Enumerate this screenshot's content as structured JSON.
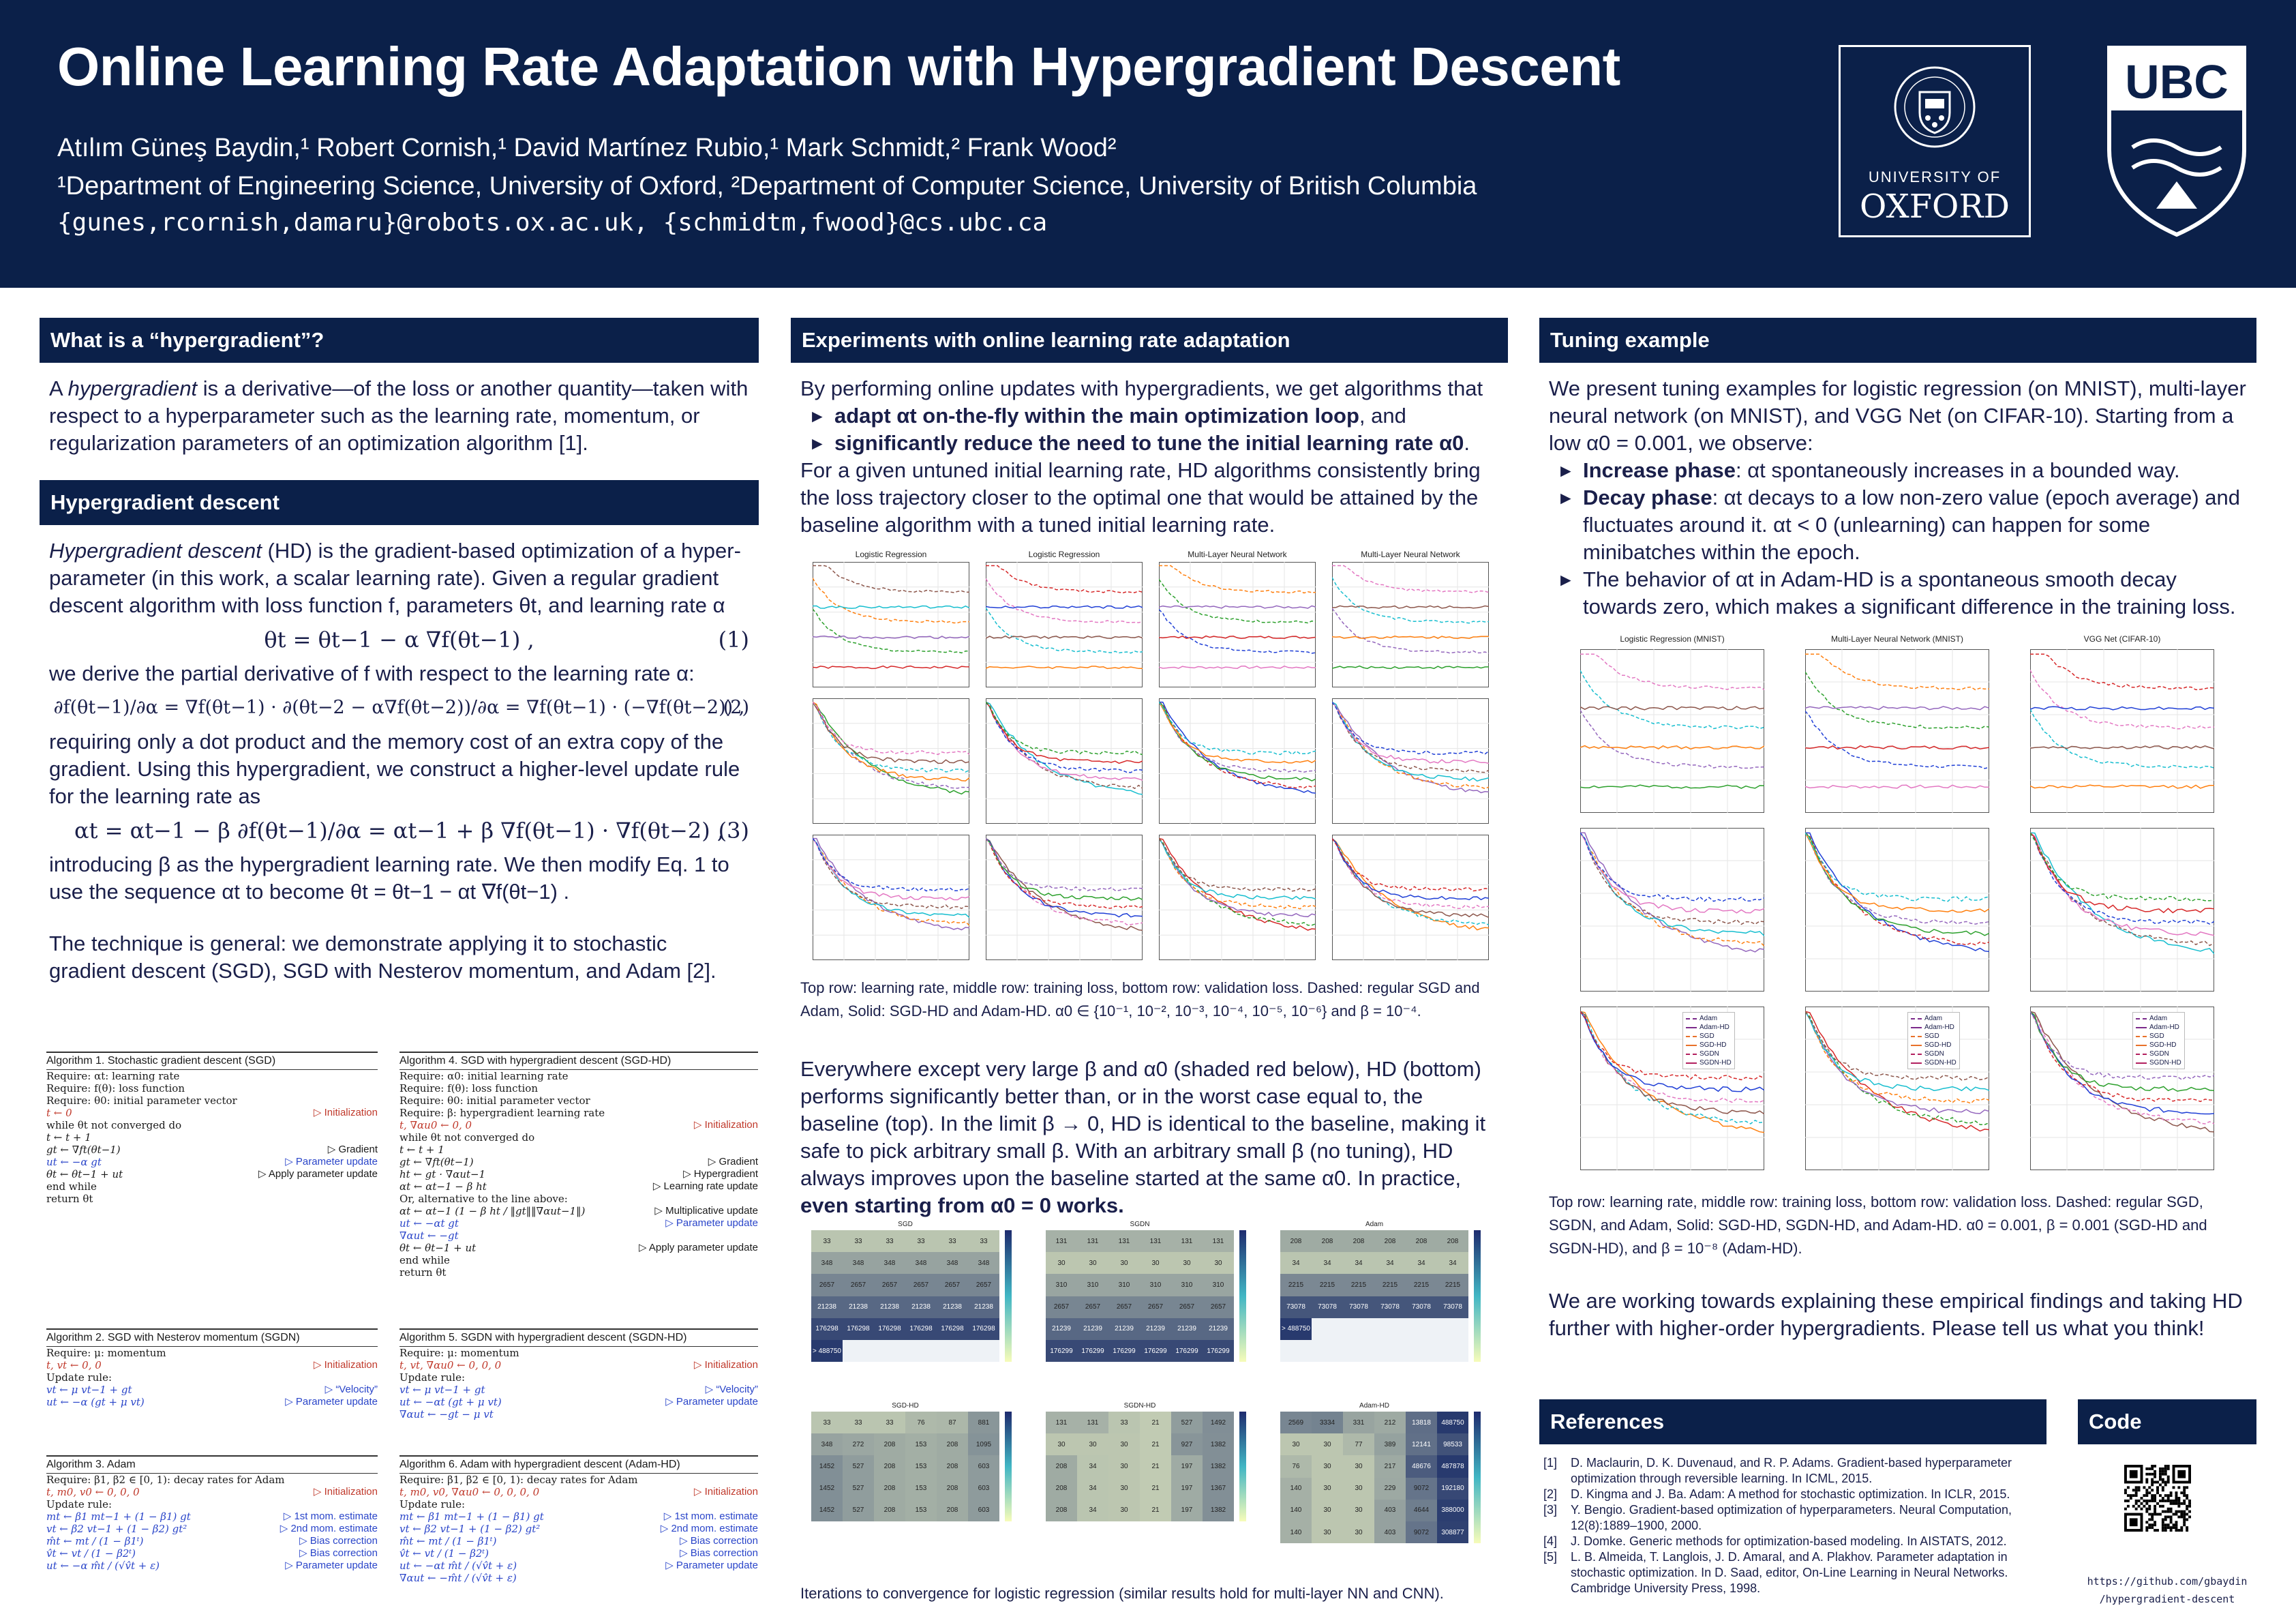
{
  "header": {
    "title": "Online Learning Rate Adaptation with Hypergradient Descent",
    "authors": "Atılım Güneş Baydin,¹ Robert Cornish,¹ David Martínez Rubio,¹ Mark Schmidt,² Frank Wood²",
    "affiliations": "¹Department of Engineering Science, University of Oxford, ²Department of Computer Science, University of British Columbia",
    "emails": "{gunes,rcornish,damaru}@robots.ox.ac.uk, {schmidtm,fwood}@cs.ubc.ca",
    "oxford_logo": {
      "line1": "UNIVERSITY OF",
      "line2": "OXFORD",
      "icon": "oxford-crest-icon"
    },
    "ubc_logo": {
      "text": "UBC",
      "icon": "ubc-shield-icon"
    }
  },
  "col1": {
    "sec1_title": "What is a “hypergradient”?",
    "sec1_p_a": "A ",
    "sec1_p_i": "hypergradient",
    "sec1_p_b": " is a derivative—of the loss or another quantity—taken with respect to a hyperparameter such as the learning rate, momentum, or regularization parameters of an optimization algorithm [1].",
    "sec2_title": "Hypergradient descent",
    "sec2_p1_i": "Hypergradient descent",
    "sec2_p1_b": " (HD) is the gradient-based optimization of a hyper-parameter (in this work, a scalar learning rate). Given a regular gradient descent algorithm with loss function f, parameters θt, and learning rate α",
    "eq1": "θt = θt−1 − α ∇f(θt−1) ,",
    "eq1_num": "(1)",
    "p2": "we derive the partial derivative of f with respect to the learning rate α:",
    "eq2": "∂f(θt−1)/∂α = ∇f(θt−1) · ∂(θt−2 − α∇f(θt−2))/∂α = ∇f(θt−1) · (−∇f(θt−2)) ,",
    "eq2_num": "(2)",
    "p3": "requiring only a dot product and the memory cost of an extra copy of the gradient. Using this hypergradient, we construct a higher-level update rule for the learning rate as",
    "eq3": "αt = αt−1 − β ∂f(θt−1)/∂α = αt−1 + β ∇f(θt−1) · ∇f(θt−2) ,",
    "eq3_num": "(3)",
    "p4": "introducing β as the hypergradient learning rate. We then modify Eq. 1 to use the sequence αt to become θt = θt−1 − αt ∇f(θt−1) .",
    "p5": "The technique is general: we demonstrate applying it to stochastic gradient descent (SGD), SGD with Nesterov momentum, and Adam [2]."
  },
  "algorithms": [
    {
      "title": "Algorithm 1. Stochastic gradient descent (SGD)",
      "lines": [
        {
          "t": "Require: αt: learning rate",
          "c": ""
        },
        {
          "t": "Require: f(θ): loss function",
          "c": ""
        },
        {
          "t": "Require: θ0: initial parameter vector",
          "c": ""
        },
        {
          "t": "t ← 0",
          "c": "▷ Initialization",
          "k": "red"
        },
        {
          "t": "while θt not converged do",
          "c": ""
        },
        {
          "t": "   t ← t + 1",
          "c": ""
        },
        {
          "t": "   gt ← ∇ft(θt−1)",
          "c": "▷ Gradient"
        },
        {
          "t": "   ut ← −α gt",
          "c": "▷ Parameter update",
          "k": "blue"
        },
        {
          "t": "   θt ← θt−1 + ut",
          "c": "▷ Apply parameter update"
        },
        {
          "t": "end while",
          "c": ""
        },
        {
          "t": "return θt",
          "c": ""
        }
      ]
    },
    {
      "title": "Algorithm 4. SGD with hypergradient descent (SGD-HD)",
      "lines": [
        {
          "t": "Require: α0: initial learning rate",
          "c": ""
        },
        {
          "t": "Require: f(θ): loss function",
          "c": ""
        },
        {
          "t": "Require: θ0: initial parameter vector",
          "c": ""
        },
        {
          "t": "Require: β: hypergradient learning rate",
          "c": ""
        },
        {
          "t": "t, ∇αu0 ← 0, 0",
          "c": "▷ Initialization",
          "k": "red"
        },
        {
          "t": "while θt not converged do",
          "c": ""
        },
        {
          "t": "   t ← t + 1",
          "c": ""
        },
        {
          "t": "   gt ← ∇ft(θt−1)",
          "c": "▷ Gradient"
        },
        {
          "t": "   ht ← gt · ∇αut−1",
          "c": "▷ Hypergradient"
        },
        {
          "t": "   αt ← αt−1 − β ht",
          "c": "▷ Learning rate update"
        },
        {
          "t": "   Or, alternative to the line above:",
          "c": ""
        },
        {
          "t": "   αt ← αt−1 (1 − β ht / ‖gt‖‖∇αut−1‖)",
          "c": "▷ Multiplicative update"
        },
        {
          "t": "   ut ← −αt gt",
          "c": "▷ Parameter update",
          "k": "blue"
        },
        {
          "t": "   ∇αut ← −gt",
          "c": "",
          "k": "blue"
        },
        {
          "t": "   θt ← θt−1 + ut",
          "c": "▷ Apply parameter update"
        },
        {
          "t": "end while",
          "c": ""
        },
        {
          "t": "return θt",
          "c": ""
        }
      ]
    },
    {
      "title": "Algorithm 2. SGD with Nesterov momentum (SGDN)",
      "lines": [
        {
          "t": "Require: μ: momentum",
          "c": ""
        },
        {
          "t": "t, vt ← 0, 0",
          "c": "▷ Initialization",
          "k": "red"
        },
        {
          "t": "Update rule:",
          "c": ""
        },
        {
          "t": "vt ← μ vt−1 + gt",
          "c": "▷ “Velocity”",
          "k": "blue"
        },
        {
          "t": "ut ← −α (gt + μ vt)",
          "c": "▷ Parameter update",
          "k": "blue"
        }
      ]
    },
    {
      "title": "Algorithm 5. SGDN with hypergradient descent (SGDN-HD)",
      "lines": [
        {
          "t": "Require: μ: momentum",
          "c": ""
        },
        {
          "t": "t, vt, ∇αu0 ← 0, 0, 0",
          "c": "▷ Initialization",
          "k": "red"
        },
        {
          "t": "Update rule:",
          "c": ""
        },
        {
          "t": "vt ← μ vt−1 + gt",
          "c": "▷ “Velocity”",
          "k": "blue"
        },
        {
          "t": "ut ← −αt (gt + μ vt)",
          "c": "▷ Parameter update",
          "k": "blue"
        },
        {
          "t": "∇αut ← −gt − μ vt",
          "c": "",
          "k": "blue"
        }
      ]
    },
    {
      "title": "Algorithm 3. Adam",
      "lines": [
        {
          "t": "Require: β1, β2 ∈ [0, 1): decay rates for Adam",
          "c": ""
        },
        {
          "t": "t, m0, v0 ← 0, 0, 0",
          "c": "▷ Initialization",
          "k": "red"
        },
        {
          "t": "Update rule:",
          "c": ""
        },
        {
          "t": "mt ← β1 mt−1 + (1 − β1) gt",
          "c": "▷ 1st mom. estimate",
          "k": "blue"
        },
        {
          "t": "vt ← β2 vt−1 + (1 − β2) gt²",
          "c": "▷ 2nd mom. estimate",
          "k": "blue"
        },
        {
          "t": "m̂t ← mt / (1 − β1ᵗ)",
          "c": "▷ Bias correction",
          "k": "blue"
        },
        {
          "t": "v̂t ← vt / (1 − β2ᵗ)",
          "c": "▷ Bias correction",
          "k": "blue"
        },
        {
          "t": "ut ← −α m̂t / (√v̂t + ε)",
          "c": "▷ Parameter update",
          "k": "blue"
        }
      ]
    },
    {
      "title": "Algorithm 6. Adam with hypergradient descent (Adam-HD)",
      "lines": [
        {
          "t": "Require: β1, β2 ∈ [0, 1): decay rates for Adam",
          "c": ""
        },
        {
          "t": "t, m0, v0, ∇αu0 ← 0, 0, 0, 0",
          "c": "▷ Initialization",
          "k": "red"
        },
        {
          "t": "Update rule:",
          "c": ""
        },
        {
          "t": "mt ← β1 mt−1 + (1 − β1) gt",
          "c": "▷ 1st mom. estimate",
          "k": "blue"
        },
        {
          "t": "vt ← β2 vt−1 + (1 − β2) gt²",
          "c": "▷ 2nd mom. estimate",
          "k": "blue"
        },
        {
          "t": "m̂t ← mt / (1 − β1ᵗ)",
          "c": "▷ Bias correction",
          "k": "blue"
        },
        {
          "t": "v̂t ← vt / (1 − β2ᵗ)",
          "c": "▷ Bias correction",
          "k": "blue"
        },
        {
          "t": "ut ← −αt m̂t / (√v̂t + ε)",
          "c": "▷ Parameter update",
          "k": "blue"
        },
        {
          "t": "∇αut ← −m̂t / (√v̂t + ε)",
          "c": "",
          "k": "blue"
        }
      ]
    }
  ],
  "col2": {
    "title": "Experiments with online learning rate adaptation",
    "intro": "By performing online updates with hypergradients, we get algorithms that",
    "b1_a": "adapt αt on-the-fly within the main optimization loop",
    "b1_b": ", and",
    "b2_a": "significantly reduce the need to tune the initial learning rate α0",
    "b2_b": ".",
    "p2": "For a given untuned initial learning rate, HD algorithms consistently bring the loss trajectory closer to the optimal one that would be attained by the baseline algorithm with a tuned initial learning rate.",
    "fig_titles": [
      "Logistic Regression",
      "Logistic Regression",
      "Multi-Layer Neural Network",
      "Multi-Layer Neural Network"
    ],
    "caption1": "Top row: learning rate, middle row: training loss, bottom row: validation loss. Dashed: regular SGD and Adam, Solid: SGD-HD and Adam-HD. α0 ∈ {10⁻¹, 10⁻², 10⁻³, 10⁻⁴, 10⁻⁵, 10⁻⁶} and β = 10⁻⁴.",
    "p3_a": "Everywhere except very large β and α0 (shaded red below), HD (bottom) performs significantly better than, or in the worst case equal to, the baseline (top). In the limit β → 0, HD is identical to the baseline, making it safe to pick arbitrary small β. With an arbitrary small β (no tuning), HD always improves upon the baseline started at the same α0. In practice, ",
    "p3_b": "even starting from α0 = 0 works.",
    "heat_titles": [
      "SGD",
      "SGDN",
      "Adam",
      "SGD-HD",
      "SGDN-HD",
      "Adam-HD"
    ],
    "caption2": "Iterations to convergence for logistic regression (similar results hold for multi-layer NN and CNN)."
  },
  "heatmaps": [
    {
      "rows": [
        [
          "33",
          "33",
          "33",
          "33",
          "33",
          "33"
        ],
        [
          "348",
          "348",
          "348",
          "348",
          "348",
          "348"
        ],
        [
          "2657",
          "2657",
          "2657",
          "2657",
          "2657",
          "2657"
        ],
        [
          "21238",
          "21238",
          "21238",
          "21238",
          "21238",
          "21238"
        ],
        [
          "176298",
          "176298",
          "176298",
          "176298",
          "176298",
          "176298"
        ],
        [
          "> 488750",
          "",
          "",
          "",
          "",
          ""
        ]
      ]
    },
    {
      "rows": [
        [
          "131",
          "131",
          "131",
          "131",
          "131",
          "131"
        ],
        [
          "30",
          "30",
          "30",
          "30",
          "30",
          "30"
        ],
        [
          "310",
          "310",
          "310",
          "310",
          "310",
          "310"
        ],
        [
          "2657",
          "2657",
          "2657",
          "2657",
          "2657",
          "2657"
        ],
        [
          "21239",
          "21239",
          "21239",
          "21239",
          "21239",
          "21239"
        ],
        [
          "176299",
          "176299",
          "176299",
          "176299",
          "176299",
          "176299"
        ]
      ]
    },
    {
      "rows": [
        [
          "208",
          "208",
          "208",
          "208",
          "208",
          "208"
        ],
        [
          "34",
          "34",
          "34",
          "34",
          "34",
          "34"
        ],
        [
          "2215",
          "2215",
          "2215",
          "2215",
          "2215",
          "2215"
        ],
        [
          "73078",
          "73078",
          "73078",
          "73078",
          "73078",
          "73078"
        ],
        [
          "> 488750",
          "",
          "",
          "",
          "",
          ""
        ],
        [
          "",
          "",
          "",
          "",
          "",
          ""
        ]
      ]
    },
    {
      "rows": [
        [
          "33",
          "33",
          "33",
          "76",
          "87",
          "881"
        ],
        [
          "348",
          "272",
          "208",
          "153",
          "208",
          "1095"
        ],
        [
          "1452",
          "527",
          "208",
          "153",
          "208",
          "603"
        ],
        [
          "1452",
          "527",
          "208",
          "153",
          "208",
          "603"
        ],
        [
          "1452",
          "527",
          "208",
          "153",
          "208",
          "603"
        ]
      ]
    },
    {
      "rows": [
        [
          "131",
          "131",
          "33",
          "21",
          "527",
          "1492"
        ],
        [
          "30",
          "30",
          "30",
          "21",
          "927",
          "1382"
        ],
        [
          "208",
          "34",
          "30",
          "21",
          "197",
          "1382"
        ],
        [
          "208",
          "34",
          "30",
          "21",
          "197",
          "1367"
        ],
        [
          "208",
          "34",
          "30",
          "21",
          "197",
          "1382"
        ]
      ]
    },
    {
      "rows": [
        [
          "2569",
          "3334",
          "331",
          "212",
          "13818",
          "488750"
        ],
        [
          "30",
          "30",
          "77",
          "389",
          "12141",
          "98533"
        ],
        [
          "76",
          "30",
          "30",
          "217",
          "48676",
          "487878"
        ],
        [
          "140",
          "30",
          "30",
          "229",
          "9072",
          "192180"
        ],
        [
          "140",
          "30",
          "30",
          "403",
          "4644",
          "388000"
        ],
        [
          "140",
          "30",
          "30",
          "403",
          "9072",
          "308877"
        ]
      ]
    }
  ],
  "col3": {
    "title": "Tuning example",
    "intro": "We present tuning examples for logistic regression (on MNIST), multi-layer neural network (on MNIST), and VGG Net (on CIFAR-10). Starting from a low α0 = 0.001, we observe:",
    "b1_a": "Increase phase",
    "b1_b": ": αt spontaneously increases in a bounded way.",
    "b2_a": "Decay phase",
    "b2_b": ": αt decays to a low non-zero value (epoch average) and fluctuates around it. αt < 0 (unlearning) can happen for some minibatches within the epoch.",
    "b3": "The behavior of αt in Adam-HD is a spontaneous smooth decay towards zero, which makes a significant difference in the training loss.",
    "fig_titles": [
      "Logistic Regression (MNIST)",
      "Multi-Layer Neural Network (MNIST)",
      "VGG Net (CIFAR-10)"
    ],
    "caption": "Top row: learning rate, middle row: training loss, bottom row: validation loss. Dashed: regular SGD, SGDN, and Adam, Solid: SGD-HD, SGDN-HD, and Adam-HD. α0 = 0.001, β = 0.001 (SGD-HD and SGDN-HD), and β = 10⁻⁸ (Adam-HD).",
    "closing": "We are working towards explaining these empirical findings and taking HD further with higher-order hypergradients. Please tell us what you think!",
    "legend": [
      "Adam",
      "Adam-HD",
      "SGD",
      "SGD-HD",
      "SGDN",
      "SGDN-HD"
    ]
  },
  "references": {
    "title": "References",
    "items": [
      {
        "n": "[1]",
        "t": "D. Maclaurin, D. K. Duvenaud, and R. P. Adams. Gradient-based hyperparameter optimization through reversible learning. In ICML, 2015."
      },
      {
        "n": "[2]",
        "t": "D. Kingma and J. Ba. Adam: A method for stochastic optimization. In ICLR, 2015."
      },
      {
        "n": "[3]",
        "t": "Y. Bengio. Gradient-based optimization of hyperparameters. Neural Computation, 12(8):1889–1900, 2000."
      },
      {
        "n": "[4]",
        "t": "J. Domke. Generic methods for optimization-based modeling. In AISTATS, 2012."
      },
      {
        "n": "[5]",
        "t": "L. B. Almeida, T. Langlois, J. D. Amaral, and A. Plakhov. Parameter adaptation in stochastic optimization. In D. Saad, editor, On-Line Learning in Neural Networks. Cambridge University Press, 1998."
      }
    ]
  },
  "code": {
    "title": "Code",
    "url1": "https://github.com/gbaydin",
    "url2": "/hypergradient-descent",
    "icon": "qr-code-icon"
  },
  "colors": {
    "navy": "#0b2049",
    "text": "#1a1f4a",
    "red": "#c0392b",
    "blue": "#2a45c9"
  }
}
